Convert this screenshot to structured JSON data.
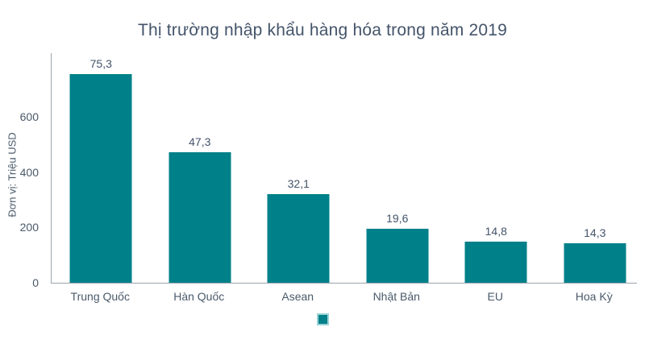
{
  "page": {
    "background_color": "#ffffff"
  },
  "chart_data": {
    "type": "bar",
    "title": "Thị trường nhập khẩu hàng hóa trong năm 2019",
    "ylabel": "Đơn vị: Triệu USD",
    "xlabel": "",
    "categories": [
      "Trung Quốc",
      "Hàn Quốc",
      "Asean",
      "Nhật Bản",
      "EU",
      "Hoa Kỳ"
    ],
    "values": [
      75.3,
      47.3,
      32.1,
      19.6,
      14.8,
      14.3
    ],
    "value_labels": [
      "75,3",
      "47,3",
      "32,1",
      "19,6",
      "14,8",
      "14,3"
    ],
    "yticks": [
      0,
      200,
      400,
      600
    ],
    "ylim": [
      0,
      830
    ],
    "plot_scale": 10,
    "grid": "off",
    "legend_position": "bottom-center",
    "legend_label": "",
    "bar_color": "#008089",
    "legend_border_color": "#9AD3D7",
    "axis_line_color": "#9AA4AE",
    "text_color": "#44546A"
  }
}
